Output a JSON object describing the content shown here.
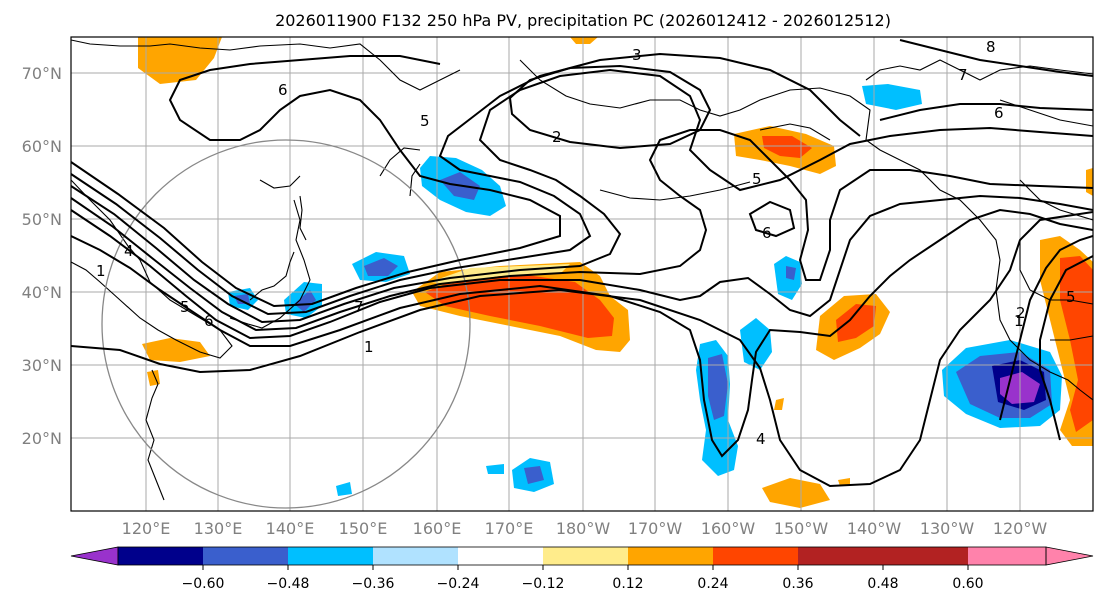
{
  "title": "2026011900 F132 250 hPa PV, precipitation PC (2026012412 - 2026012512)",
  "map": {
    "lon_labels": [
      "120°E",
      "130°E",
      "140°E",
      "150°E",
      "160°E",
      "170°E",
      "180°W",
      "170°W",
      "160°W",
      "150°W",
      "140°W",
      "130°W",
      "120°W"
    ],
    "lat_labels": [
      "70°N",
      "60°N",
      "50°N",
      "40°N",
      "30°N",
      "20°N"
    ],
    "pv_contour_labels": [
      "3",
      "6",
      "5",
      "2",
      "5",
      "6",
      "7",
      "6",
      "8",
      "1",
      "4",
      "4",
      "7",
      "1",
      "5",
      "1",
      "2",
      "6",
      "5"
    ]
  },
  "colorbar": {
    "ticks": [
      "−0.60",
      "−0.48",
      "−0.36",
      "−0.24",
      "−0.12",
      "0.12",
      "0.24",
      "0.36",
      "0.48",
      "0.60"
    ],
    "colors": [
      "#9932cc",
      "#00008b",
      "#3a5fcd",
      "#00bfff",
      "#b0e2ff",
      "#ffffff",
      "#ffec8b",
      "#ffa500",
      "#ff4500",
      "#b22222",
      "#ff82ab"
    ]
  },
  "palette": {
    "purple": "#9932cc",
    "navy": "#00008b",
    "blue": "#3a5fcd",
    "sky": "#00bfff",
    "lightblue": "#b0e2ff",
    "yellow": "#ffec8b",
    "orange": "#ffa500",
    "redorange": "#ff4500",
    "darkred": "#b22222",
    "pink": "#ff82ab"
  }
}
